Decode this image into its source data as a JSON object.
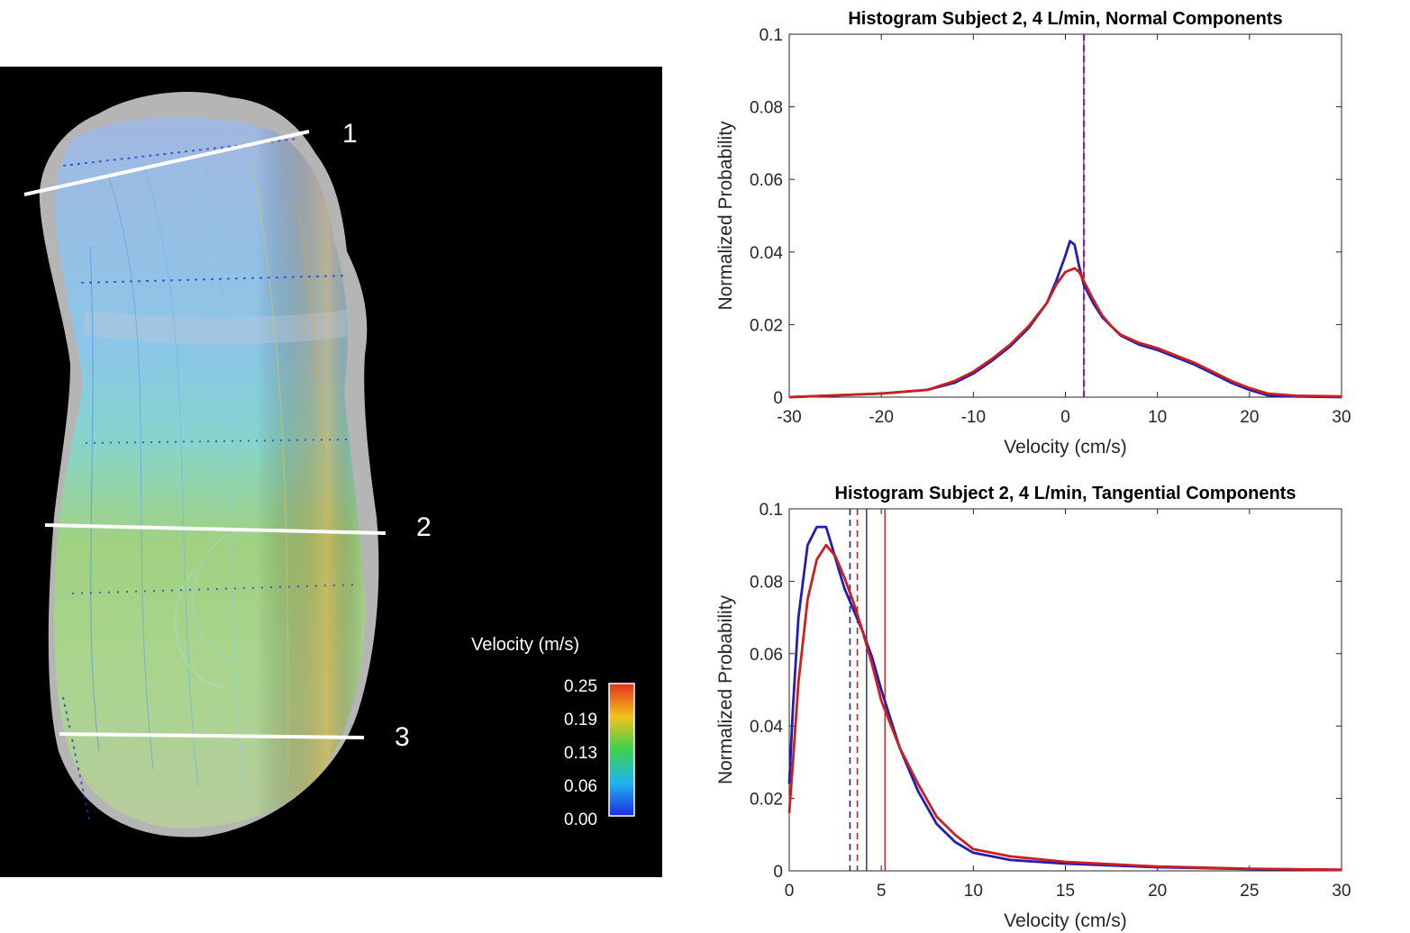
{
  "left_panel": {
    "section_labels": [
      "1",
      "2",
      "3"
    ],
    "colorbar": {
      "title": "Velocity (m/s)",
      "ticks": [
        "0.25",
        "0.19",
        "0.13",
        "0.06",
        "0.00"
      ],
      "colors": [
        "#e2301c",
        "#f5c21b",
        "#3bd14e",
        "#1fb5f2",
        "#1d2ce0"
      ]
    }
  },
  "series_colors": {
    "blue": "#1f1fb4",
    "red": "#cc1f1f",
    "center": "#7a3c8a"
  },
  "chart_data": [
    {
      "type": "line",
      "title": "Histogram Subject 2, 4 L/min, Normal Components",
      "xlabel": "Velocity (cm/s)",
      "ylabel": "Normalized Probability",
      "xlim": [
        -30,
        30
      ],
      "ylim": [
        0,
        0.1
      ],
      "xticks": [
        "-30",
        "-20",
        "-10",
        "0",
        "10",
        "20",
        "30"
      ],
      "yticks": [
        "0",
        "0.02",
        "0.04",
        "0.06",
        "0.08",
        "0.1"
      ],
      "series": [
        {
          "name": "blue",
          "x": [
            -30,
            -25,
            -20,
            -15,
            -12,
            -10,
            -8,
            -6,
            -4,
            -2,
            -1,
            0,
            0.5,
            1,
            1.5,
            2,
            3,
            4,
            5,
            6,
            8,
            10,
            12,
            14,
            16,
            18,
            20,
            22,
            25,
            30
          ],
          "y": [
            0,
            0.0005,
            0.001,
            0.002,
            0.004,
            0.0065,
            0.01,
            0.014,
            0.019,
            0.026,
            0.032,
            0.039,
            0.043,
            0.042,
            0.036,
            0.031,
            0.026,
            0.022,
            0.0195,
            0.017,
            0.0145,
            0.013,
            0.011,
            0.009,
            0.0065,
            0.004,
            0.002,
            0.0005,
            0.0002,
            0
          ]
        },
        {
          "name": "red",
          "x": [
            -30,
            -25,
            -20,
            -15,
            -12,
            -10,
            -8,
            -6,
            -4,
            -2,
            -1,
            0,
            0.5,
            1,
            1.5,
            2,
            3,
            4,
            5,
            6,
            8,
            10,
            12,
            14,
            16,
            18,
            20,
            22,
            25,
            30
          ],
          "y": [
            0,
            0.0005,
            0.001,
            0.002,
            0.0045,
            0.007,
            0.0105,
            0.0145,
            0.0195,
            0.026,
            0.031,
            0.0345,
            0.035,
            0.0355,
            0.0345,
            0.032,
            0.027,
            0.0225,
            0.0195,
            0.0172,
            0.015,
            0.0135,
            0.0115,
            0.0095,
            0.007,
            0.0045,
            0.0025,
            0.001,
            0.0004,
            0.0002
          ]
        }
      ],
      "vlines": [
        {
          "x": 2.0,
          "series": "center",
          "dash": false
        },
        {
          "x": 2.0,
          "series": "blue",
          "dash": true
        },
        {
          "x": 2.05,
          "series": "red",
          "dash": true
        }
      ]
    },
    {
      "type": "line",
      "title": "Histogram Subject 2, 4 L/min, Tangential Components",
      "xlabel": "Velocity (cm/s)",
      "ylabel": "Normalized Probability",
      "xlim": [
        0,
        30
      ],
      "ylim": [
        0,
        0.1
      ],
      "xticks": [
        "0",
        "5",
        "10",
        "15",
        "20",
        "25",
        "30"
      ],
      "yticks": [
        "0",
        "0.02",
        "0.04",
        "0.06",
        "0.08",
        "0.1"
      ],
      "series": [
        {
          "name": "blue",
          "x": [
            0,
            0.2,
            0.5,
            1,
            1.5,
            2,
            2.3,
            2.7,
            3,
            3.5,
            4,
            4.5,
            5,
            6,
            7,
            8,
            9,
            10,
            12,
            15,
            20,
            25,
            30
          ],
          "y": [
            0.024,
            0.045,
            0.07,
            0.09,
            0.095,
            0.095,
            0.09,
            0.083,
            0.078,
            0.072,
            0.066,
            0.059,
            0.05,
            0.034,
            0.022,
            0.013,
            0.008,
            0.005,
            0.003,
            0.002,
            0.001,
            0.0005,
            0.0003
          ]
        },
        {
          "name": "red",
          "x": [
            0,
            0.2,
            0.5,
            1,
            1.5,
            2,
            2.5,
            3,
            3.5,
            4,
            4.5,
            5,
            6,
            7,
            8,
            9,
            10,
            12,
            15,
            20,
            25,
            30
          ],
          "y": [
            0.016,
            0.03,
            0.052,
            0.075,
            0.086,
            0.09,
            0.087,
            0.081,
            0.074,
            0.066,
            0.057,
            0.047,
            0.034,
            0.024,
            0.015,
            0.01,
            0.006,
            0.004,
            0.0025,
            0.0012,
            0.0006,
            0.0003
          ]
        }
      ],
      "vlines": [
        {
          "x": 3.3,
          "series": "blue",
          "dash": true
        },
        {
          "x": 3.7,
          "series": "red",
          "dash": true
        },
        {
          "x": 4.2,
          "series": "blue",
          "dash": false
        },
        {
          "x": 5.2,
          "series": "red",
          "dash": false
        }
      ]
    }
  ]
}
